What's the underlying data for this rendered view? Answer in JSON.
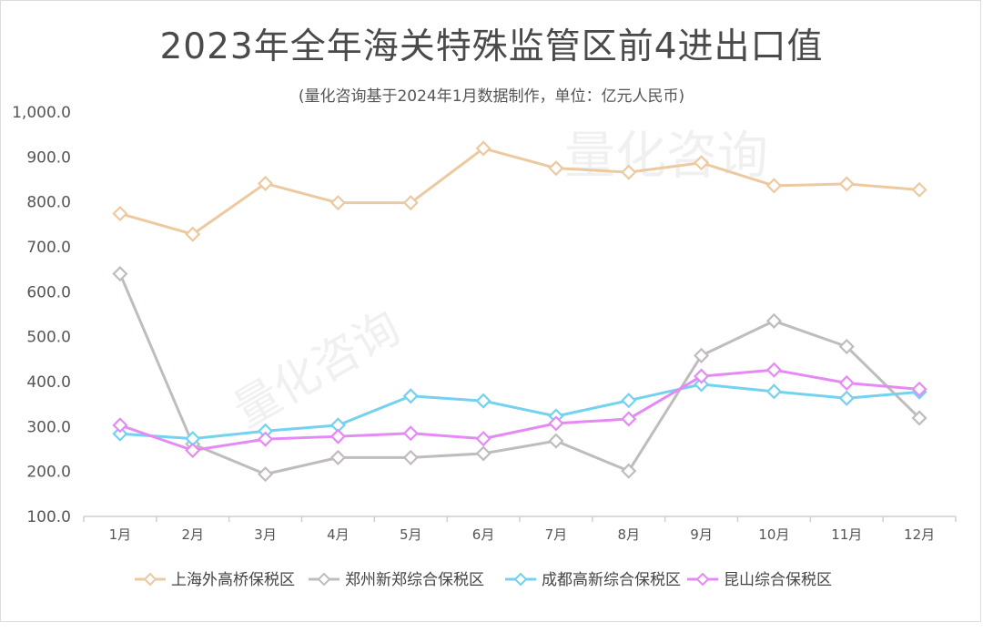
{
  "chart_data": {
    "type": "line",
    "title": "2023年全年海关特殊监管区前4进出口值",
    "subtitle": "(量化咨询基于2024年1月数据制作，单位：亿元人民币)",
    "watermark": "量化咨询",
    "categories": [
      "1月",
      "2月",
      "3月",
      "4月",
      "5月",
      "6月",
      "7月",
      "8月",
      "9月",
      "10月",
      "11月",
      "12月"
    ],
    "ylim": [
      100,
      1000
    ],
    "yticks": [
      "100.0",
      "200.0",
      "300.0",
      "400.0",
      "500.0",
      "600.0",
      "700.0",
      "800.0",
      "900.0",
      "1,000.0"
    ],
    "ytick_values": [
      100,
      200,
      300,
      400,
      500,
      600,
      700,
      800,
      900,
      1000
    ],
    "legend_position": "bottom",
    "series": [
      {
        "name": "上海外高桥保税区",
        "color": "#edc9a0",
        "values": [
          774,
          728,
          841,
          798,
          798,
          919,
          875,
          866,
          887,
          836,
          840,
          827
        ]
      },
      {
        "name": "郑州新郑综合保税区",
        "color": "#c0bcbd",
        "values": [
          640,
          261,
          194,
          231,
          231,
          240,
          268,
          201,
          458,
          535,
          478,
          319
        ]
      },
      {
        "name": "成都高新综合保税区",
        "color": "#72d2ef",
        "values": [
          284,
          273,
          290,
          303,
          368,
          357,
          323,
          358,
          394,
          378,
          363,
          377
        ]
      },
      {
        "name": "昆山综合保税区",
        "color": "#e58af5",
        "values": [
          303,
          247,
          272,
          278,
          285,
          273,
          307,
          317,
          412,
          426,
          397,
          383
        ]
      }
    ]
  }
}
